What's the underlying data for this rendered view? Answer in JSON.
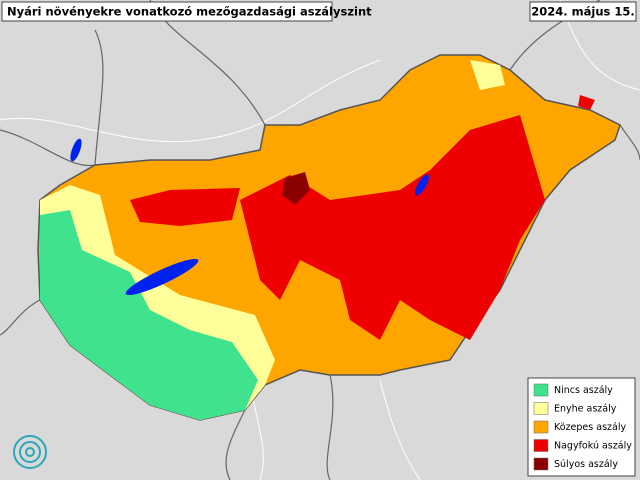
{
  "header": {
    "title": "Nyári növényekre vonatkozó mezőgazdasági aszályszint",
    "date": "2024. május 15."
  },
  "legend": {
    "items": [
      {
        "label": "Nincs aszály",
        "color": "#3fe38d"
      },
      {
        "label": "Enyhe aszály",
        "color": "#ffff9a"
      },
      {
        "label": "Közepes aszály",
        "color": "#ffa500"
      },
      {
        "label": "Nagyfokú aszály",
        "color": "#ee0000"
      },
      {
        "label": "Súlyos aszály",
        "color": "#8b0000"
      }
    ]
  }
}
